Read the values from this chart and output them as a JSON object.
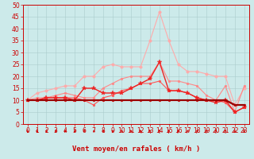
{
  "background_color": "#cceaea",
  "grid_color": "#aacccc",
  "xlabel": "Vent moyen/en rafales ( km/h )",
  "ylim": [
    0,
    50
  ],
  "yticks": [
    0,
    5,
    10,
    15,
    20,
    25,
    30,
    35,
    40,
    45,
    50
  ],
  "xticks": [
    0,
    1,
    2,
    3,
    4,
    5,
    6,
    7,
    8,
    9,
    10,
    11,
    12,
    13,
    14,
    15,
    16,
    17,
    18,
    19,
    20,
    21,
    22,
    23
  ],
  "series": [
    {
      "color": "#ffaaaa",
      "lw": 0.8,
      "marker": "o",
      "ms": 2.5,
      "data": [
        10,
        13,
        14,
        15,
        16,
        16,
        20,
        20,
        24,
        25,
        24,
        24,
        24,
        35,
        47,
        35,
        25,
        22,
        22,
        21,
        20,
        20,
        8,
        15
      ]
    },
    {
      "color": "#ff8888",
      "lw": 0.8,
      "marker": "o",
      "ms": 2.0,
      "data": [
        10,
        11,
        11,
        12,
        13,
        12,
        11,
        11,
        15,
        17,
        19,
        20,
        20,
        20,
        26,
        18,
        18,
        17,
        16,
        12,
        10,
        16,
        5,
        16
      ]
    },
    {
      "color": "#ff5555",
      "lw": 0.8,
      "marker": "o",
      "ms": 2.0,
      "data": [
        10,
        10,
        11,
        11,
        11,
        11,
        10,
        8,
        11,
        12,
        14,
        15,
        17,
        17,
        18,
        14,
        14,
        13,
        11,
        10,
        10,
        9,
        5,
        7
      ]
    },
    {
      "color": "#ee2222",
      "lw": 1.0,
      "marker": "*",
      "ms": 4,
      "data": [
        10,
        10,
        11,
        11,
        11,
        10,
        15,
        15,
        13,
        13,
        13,
        15,
        17,
        19,
        26,
        14,
        14,
        13,
        11,
        10,
        9,
        10,
        5,
        7
      ]
    },
    {
      "color": "#cc0000",
      "lw": 1.5,
      "marker": "o",
      "ms": 2.0,
      "data": [
        10,
        10,
        10,
        10,
        10,
        10,
        10,
        10,
        10,
        10,
        10,
        10,
        10,
        10,
        10,
        10,
        10,
        10,
        10,
        10,
        10,
        10,
        8,
        8
      ]
    },
    {
      "color": "#990000",
      "lw": 1.5,
      "marker": null,
      "ms": 0,
      "data": [
        10,
        10,
        10,
        10,
        10,
        10,
        10,
        10,
        10,
        10,
        10,
        10,
        10,
        10,
        10,
        10,
        10,
        10,
        10,
        10,
        10,
        10,
        8,
        8
      ]
    }
  ],
  "arrow_angles": [
    180,
    185,
    195,
    200,
    210,
    225,
    240,
    265,
    280,
    300,
    315,
    325,
    335,
    345,
    355,
    10,
    20,
    30,
    20,
    10,
    5,
    355,
    180,
    185
  ],
  "tick_fontsize": 5.5,
  "xlabel_fontsize": 6.5
}
